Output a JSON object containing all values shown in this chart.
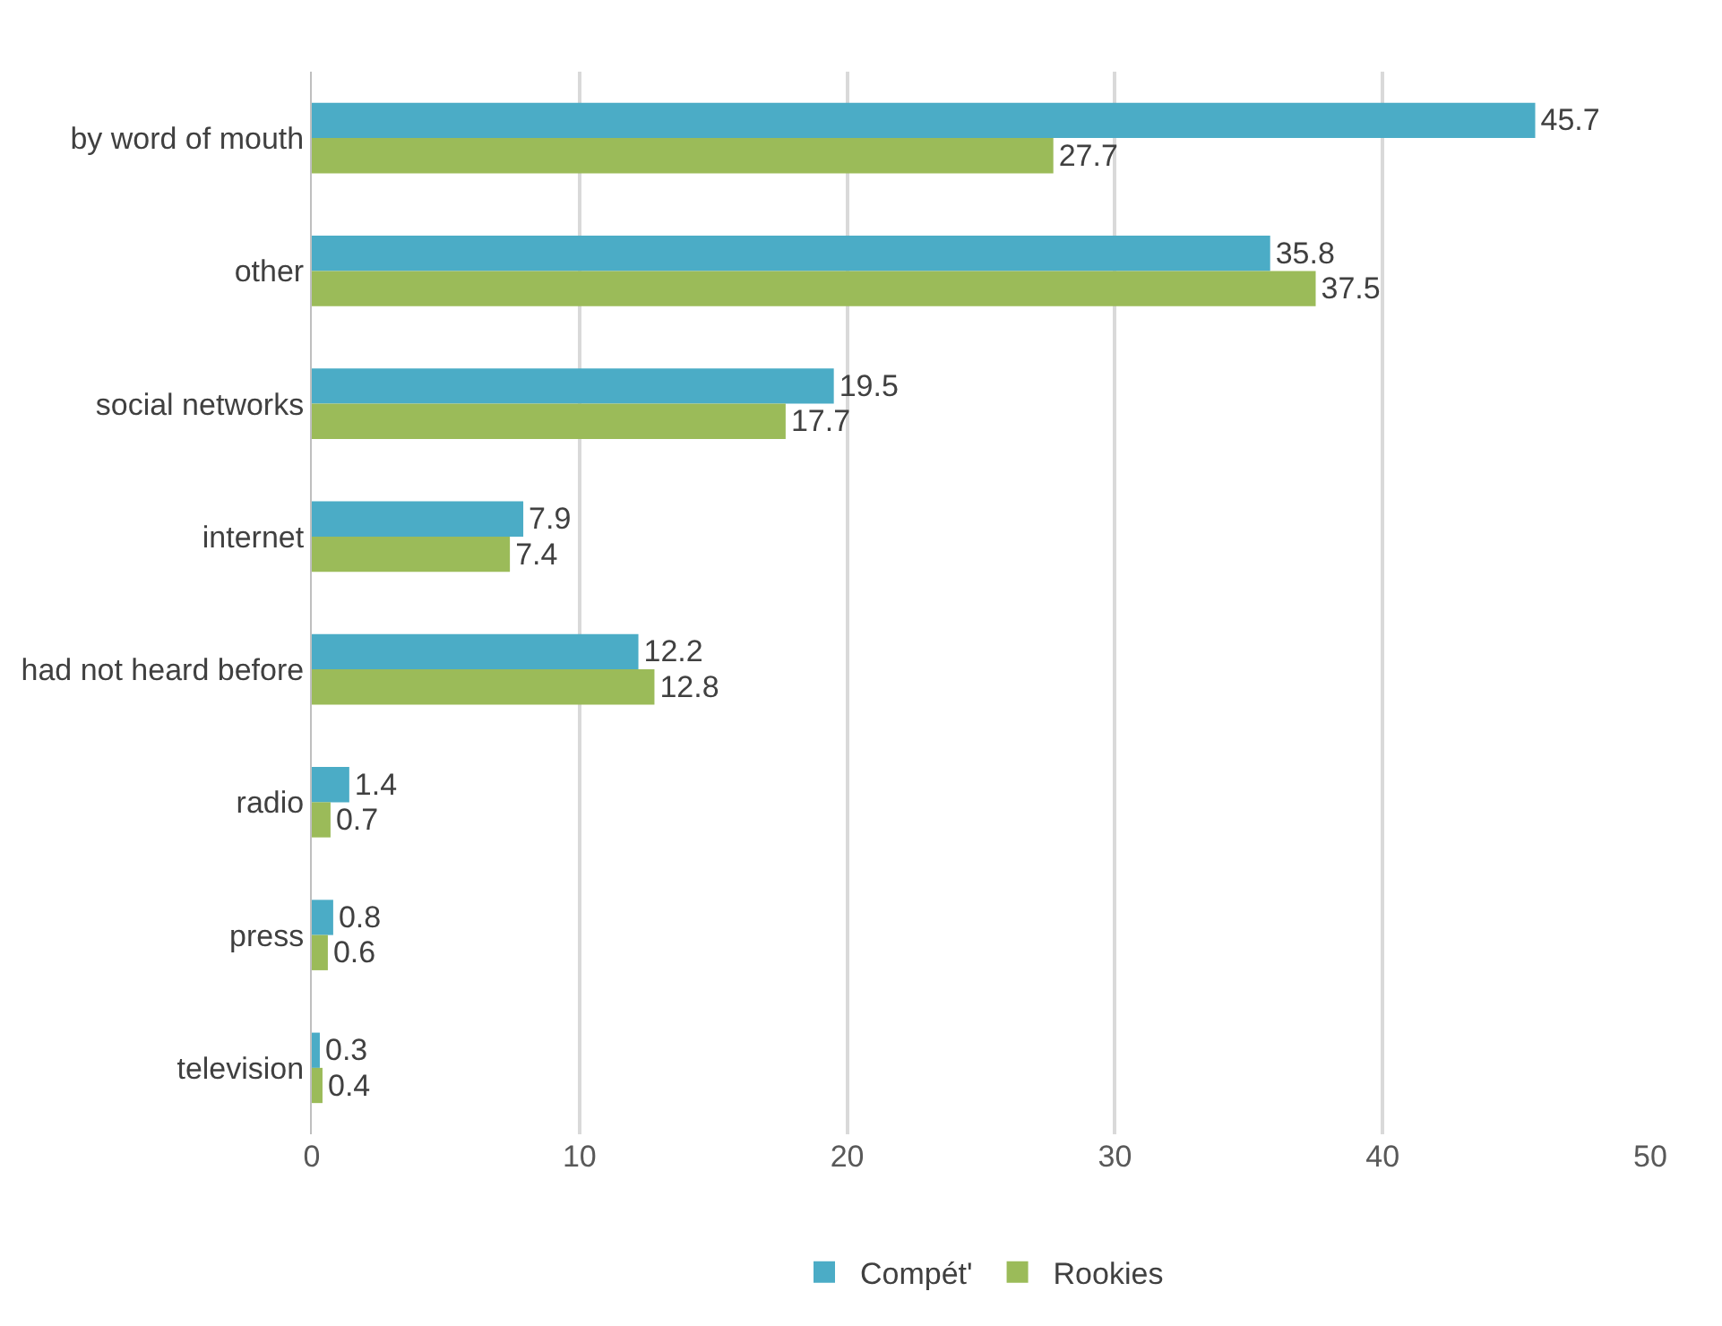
{
  "chart_data": {
    "type": "bar",
    "orientation": "horizontal",
    "categories": [
      "by word of mouth",
      "other",
      "social networks",
      "internet",
      "had not heard before",
      "radio",
      "press",
      "television"
    ],
    "series": [
      {
        "name": "Compét'",
        "color": "#4bacc6",
        "values": [
          45.7,
          35.8,
          19.5,
          7.9,
          12.2,
          1.4,
          0.8,
          0.3
        ]
      },
      {
        "name": "Rookies",
        "color": "#9bbb59",
        "values": [
          27.7,
          37.5,
          17.7,
          7.4,
          12.8,
          0.7,
          0.6,
          0.4
        ]
      }
    ],
    "xlim": [
      0,
      50
    ],
    "xticks": [
      0,
      10,
      20,
      30,
      40,
      50
    ],
    "grid": "x",
    "legend": "bottom",
    "data_labels": true
  }
}
